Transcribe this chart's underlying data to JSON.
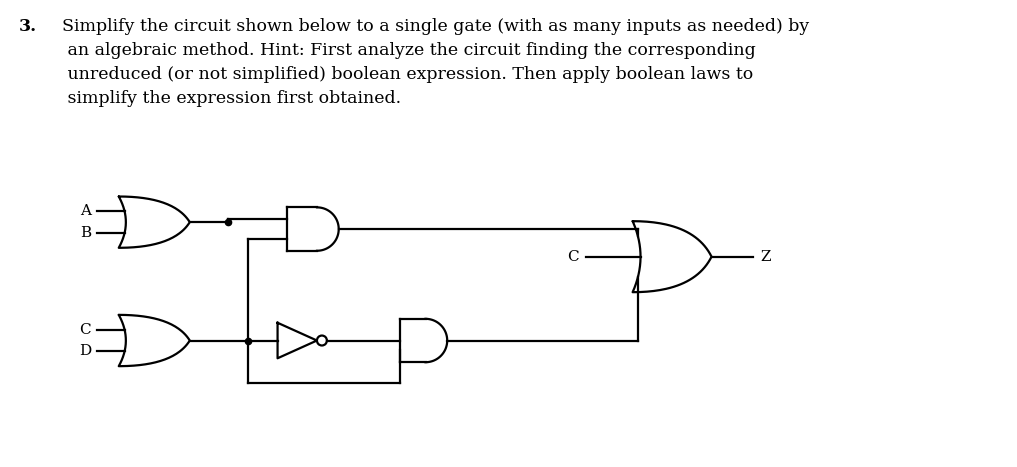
{
  "bg_color": "#ffffff",
  "line_color": "#000000",
  "font_color": "#000000",
  "label_A": "A",
  "label_B": "B",
  "label_C_input": "C",
  "label_D": "D",
  "label_C_direct": "C",
  "label_Z": "Z",
  "text_fontsize": 12.5,
  "label_fontsize": 11,
  "bold_num": "3.",
  "text_body": "  Simplify the circuit shown below to a single gate (with as many inputs as needed) by\n   an algebraic method. Hint: First analyze the circuit finding the corresponding\n   unreduced (or not simplified) boolean expression. Then apply boolean laws to\n   simplify the expression first obtained."
}
